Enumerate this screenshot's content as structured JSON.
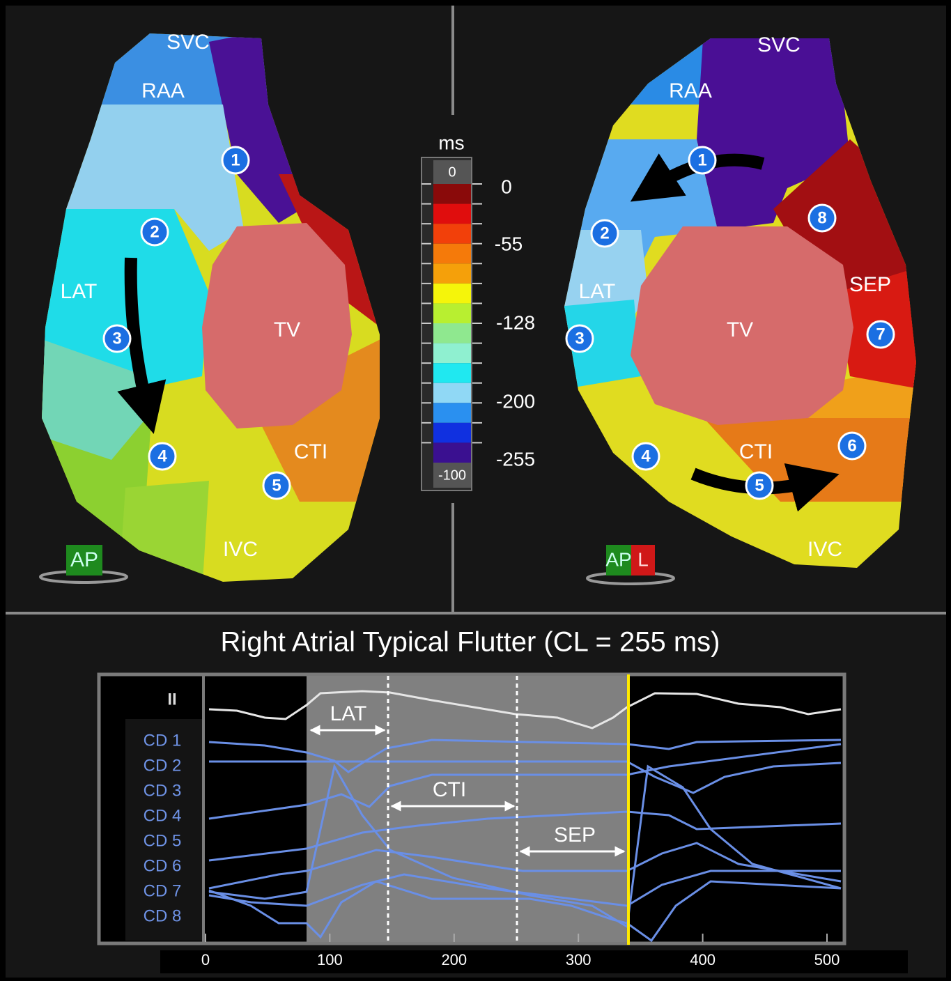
{
  "left_map": {
    "labels": [
      "SVC",
      "RAA",
      "LAT",
      "TV",
      "CTI",
      "IVC"
    ],
    "markers": [
      "1",
      "2",
      "3",
      "4",
      "5"
    ],
    "view": "AP"
  },
  "right_map": {
    "labels": [
      "SVC",
      "RAA",
      "LAT",
      "TV",
      "CTI",
      "IVC",
      "SEP"
    ],
    "markers": [
      "1",
      "2",
      "3",
      "4",
      "5",
      "6",
      "7",
      "8"
    ],
    "view": [
      "AP",
      "L"
    ]
  },
  "color_scale": {
    "unit": "ms",
    "top": "0",
    "bottom": "-100",
    "labels": [
      "0",
      "-55",
      "-128",
      "-200",
      "-255"
    ]
  },
  "title": "Right Atrial Typical Flutter (CL = 255 ms)",
  "traces": {
    "lead": "II",
    "channels": [
      "CD 1",
      "CD 2",
      "CD 3",
      "CD 4",
      "CD 5",
      "CD 6",
      "CD 7",
      "CD 8"
    ],
    "intervals": [
      "LAT",
      "CTI",
      "SEP"
    ]
  },
  "x_axis": {
    "ticks": [
      0,
      100,
      200,
      300,
      400,
      500
    ]
  }
}
